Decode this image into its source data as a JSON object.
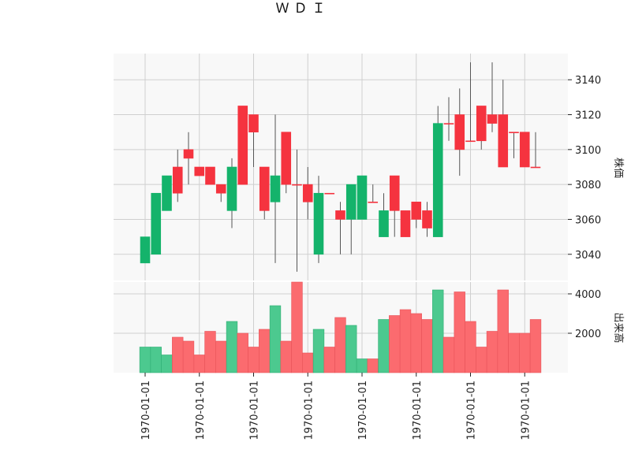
{
  "chart_data": {
    "type": "candlestick",
    "title": "ＷＤＩ",
    "price_axis_label": "株価",
    "volume_axis_label": "出来高",
    "price_ylim": [
      3025,
      3155
    ],
    "price_ticks": [
      3040,
      3060,
      3080,
      3100,
      3120,
      3140
    ],
    "volume_ylim": [
      0,
      4600
    ],
    "volume_ticks": [
      2000,
      4000
    ],
    "x_tick_labels": [
      "1970-01-01",
      "1970-01-01",
      "1970-01-01",
      "1970-01-01",
      "1970-01-01",
      "1970-01-01",
      "1970-01-01",
      "1970-01-01"
    ],
    "x_tick_candle_index": [
      0,
      5,
      10,
      15,
      20,
      25,
      30,
      35
    ],
    "grid": true,
    "colors": {
      "up": "#14b36b",
      "down": "#f5333f",
      "vol_up": "#4cc98f",
      "vol_down": "#fb6b6f",
      "wick": "#555555",
      "panel_bg": "#f8f8f8",
      "grid": "#cfcfcf"
    },
    "candles": [
      {
        "open": 3035,
        "high": 3050,
        "low": 3035,
        "close": 3050,
        "volume": 1300
      },
      {
        "open": 3040,
        "high": 3075,
        "low": 3040,
        "close": 3075,
        "volume": 1300
      },
      {
        "open": 3065,
        "high": 3085,
        "low": 3065,
        "close": 3085,
        "volume": 900
      },
      {
        "open": 3090,
        "high": 3100,
        "low": 3070,
        "close": 3075,
        "volume": 1800
      },
      {
        "open": 3100,
        "high": 3110,
        "low": 3080,
        "close": 3095,
        "volume": 1600
      },
      {
        "open": 3090,
        "high": 3090,
        "low": 3085,
        "close": 3085,
        "volume": 900
      },
      {
        "open": 3090,
        "high": 3090,
        "low": 3080,
        "close": 3080,
        "volume": 2100
      },
      {
        "open": 3080,
        "high": 3080,
        "low": 3070,
        "close": 3075,
        "volume": 1600
      },
      {
        "open": 3065,
        "high": 3095,
        "low": 3055,
        "close": 3090,
        "volume": 2600
      },
      {
        "open": 3125,
        "high": 3125,
        "low": 3080,
        "close": 3080,
        "volume": 2000
      },
      {
        "open": 3120,
        "high": 3120,
        "low": 3090,
        "close": 3110,
        "volume": 1300
      },
      {
        "open": 3090,
        "high": 3090,
        "low": 3060,
        "close": 3065,
        "volume": 2200
      },
      {
        "open": 3070,
        "high": 3120,
        "low": 3035,
        "close": 3085,
        "volume": 3400
      },
      {
        "open": 3110,
        "high": 3110,
        "low": 3075,
        "close": 3080,
        "volume": 1600
      },
      {
        "open": 3080,
        "high": 3100,
        "low": 3030,
        "close": 3080,
        "volume": 4600
      },
      {
        "open": 3080,
        "high": 3090,
        "low": 3060,
        "close": 3070,
        "volume": 1000
      },
      {
        "open": 3040,
        "high": 3085,
        "low": 3035,
        "close": 3075,
        "volume": 2200
      },
      {
        "open": 3075,
        "high": 3075,
        "low": 3075,
        "close": 3075,
        "volume": 1300
      },
      {
        "open": 3065,
        "high": 3070,
        "low": 3040,
        "close": 3060,
        "volume": 2800
      },
      {
        "open": 3060,
        "high": 3080,
        "low": 3040,
        "close": 3080,
        "volume": 2400
      },
      {
        "open": 3060,
        "high": 3085,
        "low": 3060,
        "close": 3085,
        "volume": 700
      },
      {
        "open": 3070,
        "high": 3080,
        "low": 3070,
        "close": 3070,
        "volume": 700
      },
      {
        "open": 3050,
        "high": 3075,
        "low": 3050,
        "close": 3065,
        "volume": 2700
      },
      {
        "open": 3085,
        "high": 3085,
        "low": 3050,
        "close": 3065,
        "volume": 2900
      },
      {
        "open": 3065,
        "high": 3065,
        "low": 3050,
        "close": 3050,
        "volume": 3200
      },
      {
        "open": 3070,
        "high": 3070,
        "low": 3055,
        "close": 3060,
        "volume": 3000
      },
      {
        "open": 3065,
        "high": 3070,
        "low": 3050,
        "close": 3055,
        "volume": 2700
      },
      {
        "open": 3050,
        "high": 3125,
        "low": 3050,
        "close": 3115,
        "volume": 4200
      },
      {
        "open": 3115,
        "high": 3130,
        "low": 3105,
        "close": 3115,
        "volume": 1800
      },
      {
        "open": 3120,
        "high": 3135,
        "low": 3085,
        "close": 3100,
        "volume": 4100
      },
      {
        "open": 3105,
        "high": 3150,
        "low": 3105,
        "close": 3105,
        "volume": 2600
      },
      {
        "open": 3125,
        "high": 3125,
        "low": 3100,
        "close": 3105,
        "volume": 1300
      },
      {
        "open": 3120,
        "high": 3150,
        "low": 3110,
        "close": 3115,
        "volume": 2100
      },
      {
        "open": 3120,
        "high": 3140,
        "low": 3090,
        "close": 3090,
        "volume": 4200
      },
      {
        "open": 3110,
        "high": 3110,
        "low": 3095,
        "close": 3110,
        "volume": 2000
      },
      {
        "open": 3110,
        "high": 3110,
        "low": 3090,
        "close": 3090,
        "volume": 2000
      },
      {
        "open": 3090,
        "high": 3110,
        "low": 3090,
        "close": 3090,
        "volume": 2700
      }
    ]
  }
}
